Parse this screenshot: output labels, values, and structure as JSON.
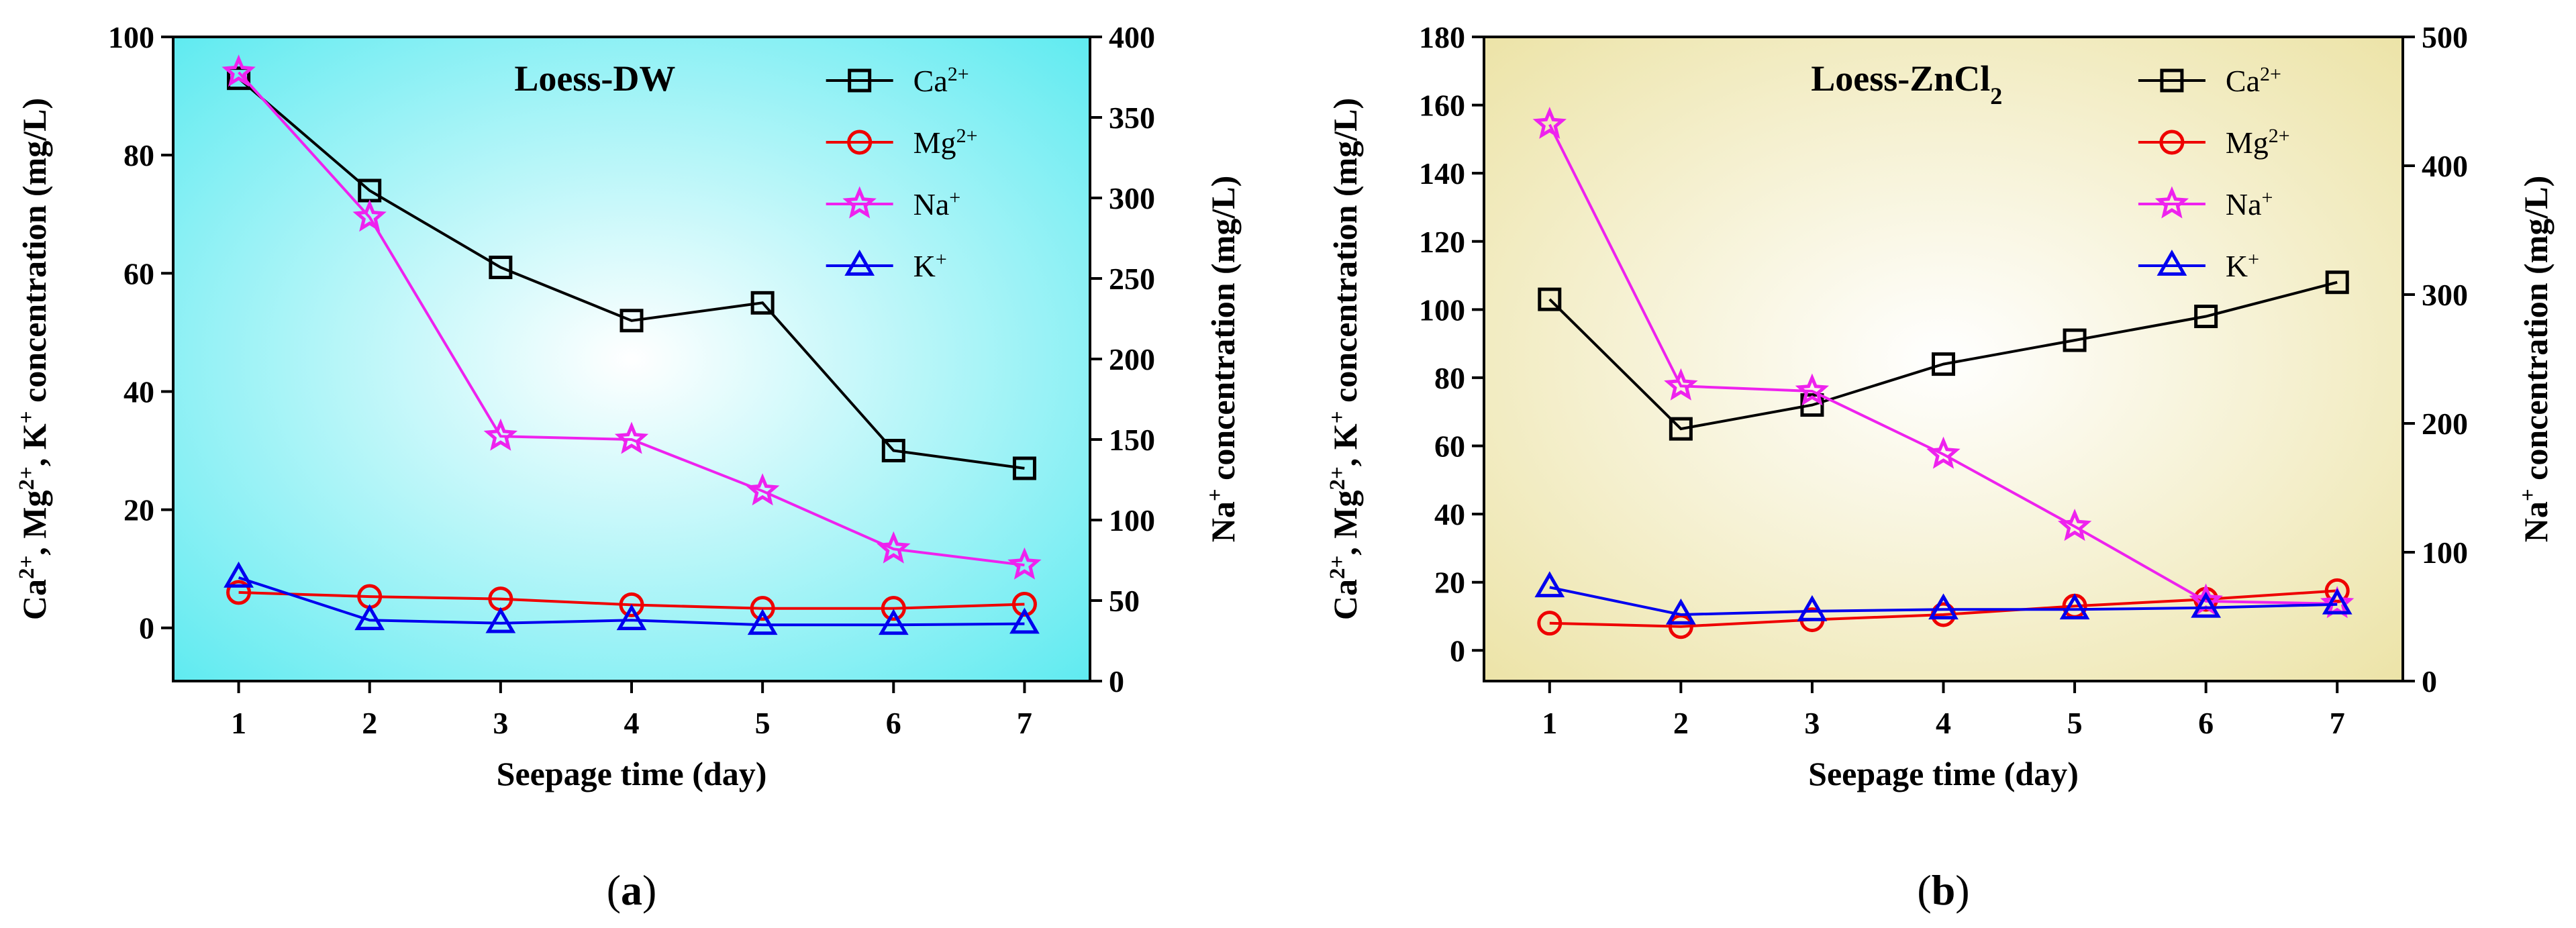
{
  "chart_data": [
    {
      "type": "line",
      "panel_label": "a",
      "panel_label_text": "(a)",
      "title": "Loess-DW",
      "xlabel": "Seepage time (day)",
      "ylabel_left": {
        "parts": [
          "Ca",
          "2+",
          ", Mg",
          "2+",
          ", K",
          "+",
          " concentration (mg/L)"
        ]
      },
      "ylabel_right": {
        "parts": [
          "Na",
          "+",
          " concentration (mg/L)"
        ]
      },
      "x": [
        1,
        2,
        3,
        4,
        5,
        6,
        7
      ],
      "xlim": [
        0.5,
        7.5
      ],
      "ylim_left": [
        -9,
        100
      ],
      "ylim_right": [
        0,
        400
      ],
      "yticks_left": [
        0,
        20,
        40,
        60,
        80,
        100
      ],
      "yticks_right": [
        0,
        50,
        100,
        150,
        200,
        250,
        300,
        350,
        400
      ],
      "background": {
        "center": "#ffffff",
        "edge": "#5ceaf0"
      },
      "legend_position": "top-right",
      "series": [
        {
          "name": "Ca",
          "sup": "2+",
          "axis": "left",
          "marker": "square",
          "color": "#000000",
          "values": [
            93,
            74,
            61,
            52,
            55,
            30,
            27
          ]
        },
        {
          "name": "Mg",
          "sup": "2+",
          "axis": "left",
          "marker": "circle",
          "color": "#ee0000",
          "values": [
            6,
            5.3,
            4.9,
            3.9,
            3.3,
            3.3,
            4
          ]
        },
        {
          "name": "Na",
          "sup": "+",
          "axis": "right",
          "marker": "star",
          "color": "#ee22ee",
          "values": [
            378,
            288,
            152,
            150,
            118,
            82,
            72
          ]
        },
        {
          "name": "K",
          "sup": "+",
          "axis": "left",
          "marker": "triangle",
          "color": "#0000ee",
          "values": [
            8.5,
            1.3,
            0.8,
            1.3,
            0.5,
            0.5,
            0.7
          ]
        }
      ]
    },
    {
      "type": "line",
      "panel_label": "b",
      "panel_label_text": "(b)",
      "title": "Loess-ZnCl",
      "title_sub": "2",
      "xlabel": "Seepage time (day)",
      "ylabel_left": {
        "parts": [
          "Ca",
          "2+",
          ", Mg",
          "2+",
          ", K",
          "+",
          " concentration (mg/L)"
        ]
      },
      "ylabel_right": {
        "parts": [
          "Na",
          "+",
          " concentration (mg/L)"
        ]
      },
      "x": [
        1,
        2,
        3,
        4,
        5,
        6,
        7
      ],
      "xlim": [
        0.5,
        7.5
      ],
      "ylim_left": [
        -9,
        180
      ],
      "ylim_right": [
        0,
        500
      ],
      "yticks_left": [
        0,
        20,
        40,
        60,
        80,
        100,
        120,
        140,
        160,
        180
      ],
      "yticks_right": [
        0,
        100,
        200,
        300,
        400,
        500
      ],
      "background": {
        "center": "#ffffff",
        "edge": "#ece3a6"
      },
      "legend_position": "top-right",
      "series": [
        {
          "name": "Ca",
          "sup": "2+",
          "axis": "left",
          "marker": "square",
          "color": "#000000",
          "values": [
            103,
            65,
            72,
            84,
            91,
            98,
            108
          ]
        },
        {
          "name": "Mg",
          "sup": "2+",
          "axis": "left",
          "marker": "circle",
          "color": "#ee0000",
          "values": [
            8,
            7,
            9,
            10.5,
            13,
            15,
            17.5
          ]
        },
        {
          "name": "Na",
          "sup": "+",
          "axis": "right",
          "marker": "star",
          "color": "#ee22ee",
          "values": [
            432,
            229,
            225,
            176,
            120,
            62,
            60
          ]
        },
        {
          "name": "K",
          "sup": "+",
          "axis": "left",
          "marker": "triangle",
          "color": "#0000ee",
          "values": [
            18.5,
            10.5,
            11.5,
            12,
            12,
            12.5,
            13.5
          ]
        }
      ]
    }
  ]
}
